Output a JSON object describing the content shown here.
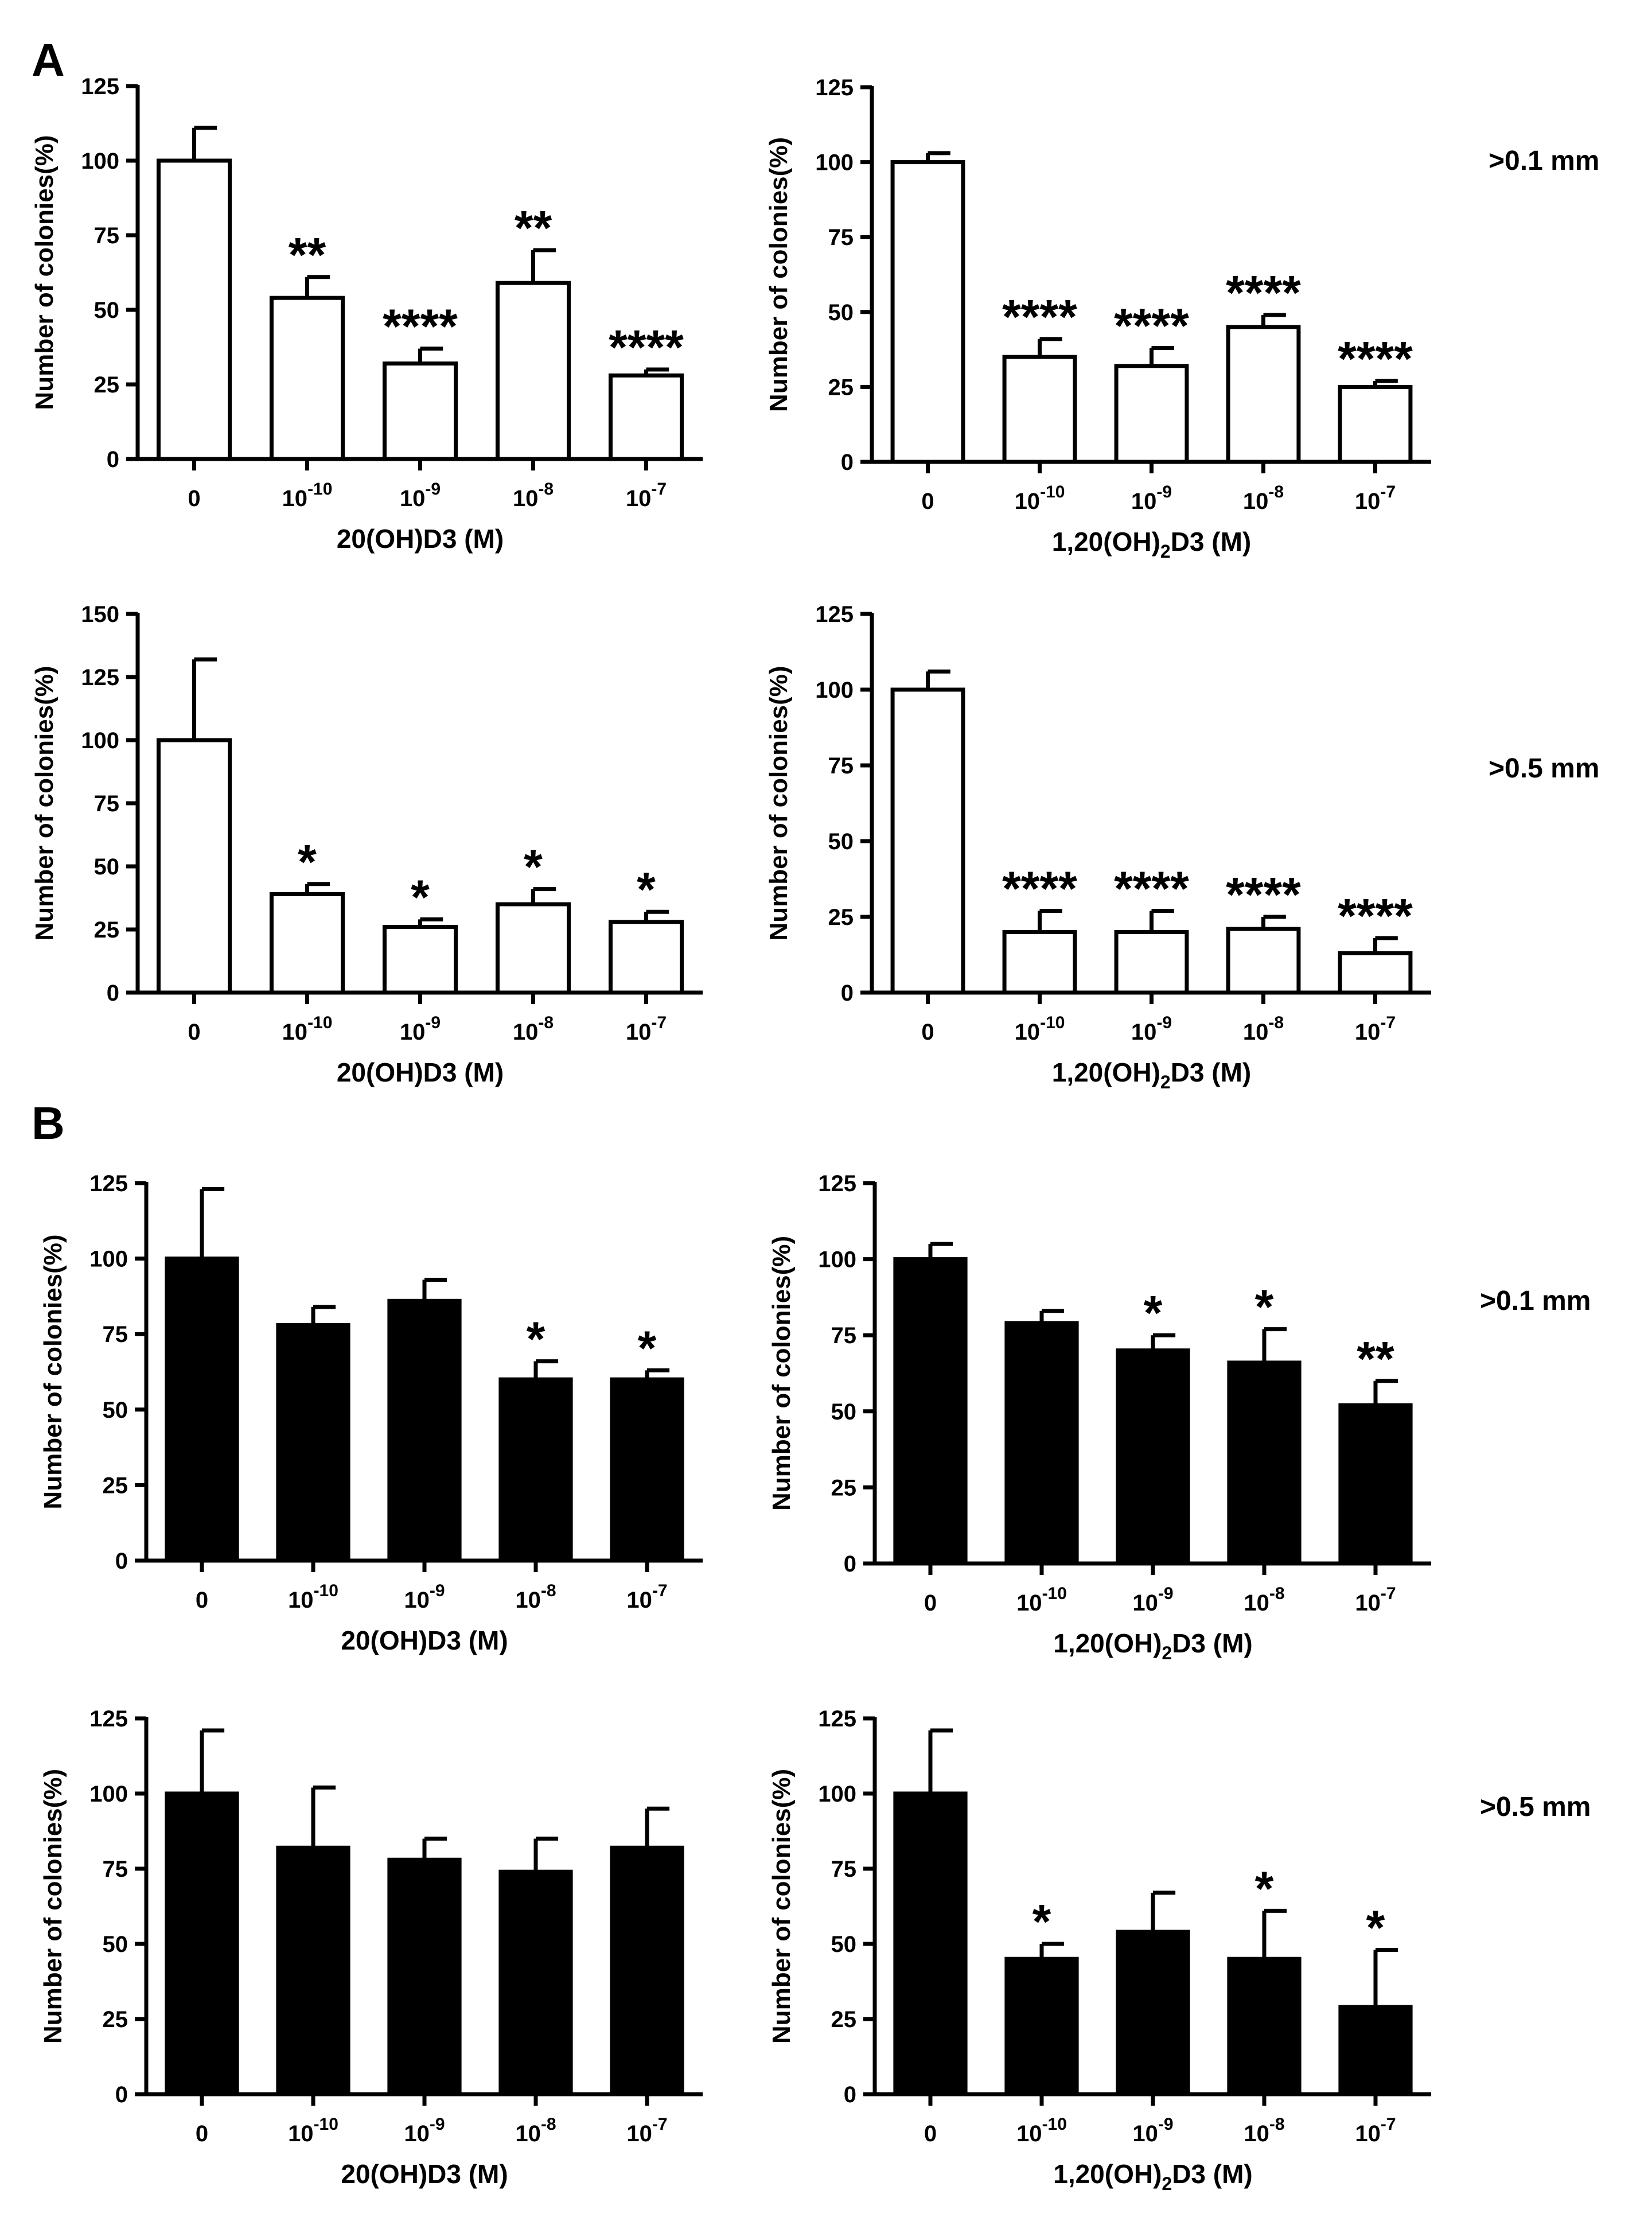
{
  "panel_labels": [
    "A",
    "B"
  ],
  "chart_data": [
    {
      "id": "A-tl",
      "type": "bar",
      "panel": "A",
      "fill": "#ffffff",
      "title": "",
      "ylabel": "Number of colonies(%)",
      "xlabel": "20(OH)D3 (M)",
      "categories": [
        {
          "base": "0",
          "exp": ""
        },
        {
          "base": "10",
          "exp": "-10"
        },
        {
          "base": "10",
          "exp": "-9"
        },
        {
          "base": "10",
          "exp": "-8"
        },
        {
          "base": "10",
          "exp": "-7"
        }
      ],
      "values": [
        100,
        54,
        32,
        59,
        28
      ],
      "errors": [
        11,
        7,
        5,
        11,
        2
      ],
      "significance": [
        "",
        "**",
        "****",
        "**",
        "****"
      ],
      "ylim": [
        0,
        125
      ],
      "yticks": [
        0,
        25,
        50,
        75,
        100,
        125
      ]
    },
    {
      "id": "A-tr",
      "type": "bar",
      "panel": "A",
      "fill": "#ffffff",
      "title": "",
      "ylabel": "Number of colonies(%)",
      "xlabel": "1,20(OH)2D3 (M)",
      "categories": [
        {
          "base": "0",
          "exp": ""
        },
        {
          "base": "10",
          "exp": "-10"
        },
        {
          "base": "10",
          "exp": "-9"
        },
        {
          "base": "10",
          "exp": "-8"
        },
        {
          "base": "10",
          "exp": "-7"
        }
      ],
      "values": [
        100,
        35,
        32,
        45,
        25
      ],
      "errors": [
        3,
        6,
        6,
        4,
        2
      ],
      "significance": [
        "",
        "****",
        "****",
        "****",
        "****"
      ],
      "ylim": [
        0,
        125
      ],
      "yticks": [
        0,
        25,
        50,
        75,
        100,
        125
      ]
    },
    {
      "id": "A-bl",
      "type": "bar",
      "panel": "A",
      "fill": "#ffffff",
      "title": "",
      "ylabel": "Number of colonies(%)",
      "xlabel": "20(OH)D3 (M)",
      "categories": [
        {
          "base": "0",
          "exp": ""
        },
        {
          "base": "10",
          "exp": "-10"
        },
        {
          "base": "10",
          "exp": "-9"
        },
        {
          "base": "10",
          "exp": "-8"
        },
        {
          "base": "10",
          "exp": "-7"
        }
      ],
      "values": [
        100,
        39,
        26,
        35,
        28
      ],
      "errors": [
        32,
        4,
        3,
        6,
        4
      ],
      "significance": [
        "",
        "*",
        "*",
        "*",
        "*"
      ],
      "ylim": [
        0,
        150
      ],
      "yticks": [
        0,
        25,
        50,
        75,
        100,
        125,
        150
      ]
    },
    {
      "id": "A-br",
      "type": "bar",
      "panel": "A",
      "fill": "#ffffff",
      "title": "",
      "ylabel": "Number of colonies(%)",
      "xlabel": "1,20(OH)2D3 (M)",
      "categories": [
        {
          "base": "0",
          "exp": ""
        },
        {
          "base": "10",
          "exp": "-10"
        },
        {
          "base": "10",
          "exp": "-9"
        },
        {
          "base": "10",
          "exp": "-8"
        },
        {
          "base": "10",
          "exp": "-7"
        }
      ],
      "values": [
        100,
        20,
        20,
        21,
        13
      ],
      "errors": [
        6,
        7,
        7,
        4,
        5
      ],
      "significance": [
        "",
        "****",
        "****",
        "****",
        "****"
      ],
      "ylim": [
        0,
        125
      ],
      "yticks": [
        0,
        25,
        50,
        75,
        100,
        125
      ]
    },
    {
      "id": "B-tl",
      "type": "bar",
      "panel": "B",
      "fill": "#000000",
      "title": "",
      "ylabel": "Number of colonies(%)",
      "xlabel": "20(OH)D3 (M)",
      "categories": [
        {
          "base": "0",
          "exp": ""
        },
        {
          "base": "10",
          "exp": "-10"
        },
        {
          "base": "10",
          "exp": "-9"
        },
        {
          "base": "10",
          "exp": "-8"
        },
        {
          "base": "10",
          "exp": "-7"
        }
      ],
      "values": [
        100,
        78,
        86,
        60,
        60
      ],
      "errors": [
        23,
        6,
        7,
        6,
        3
      ],
      "significance": [
        "",
        "",
        "",
        "*",
        "*"
      ],
      "ylim": [
        0,
        125
      ],
      "yticks": [
        0,
        25,
        50,
        75,
        100,
        125
      ]
    },
    {
      "id": "B-tr",
      "type": "bar",
      "panel": "B",
      "fill": "#000000",
      "title": "",
      "ylabel": "Number of colonies(%)",
      "xlabel": "1,20(OH)2D3 (M)",
      "categories": [
        {
          "base": "0",
          "exp": ""
        },
        {
          "base": "10",
          "exp": "-10"
        },
        {
          "base": "10",
          "exp": "-9"
        },
        {
          "base": "10",
          "exp": "-8"
        },
        {
          "base": "10",
          "exp": "-7"
        }
      ],
      "values": [
        100,
        79,
        70,
        66,
        52
      ],
      "errors": [
        5,
        4,
        5,
        11,
        8
      ],
      "significance": [
        "",
        "",
        "*",
        "*",
        "**"
      ],
      "ylim": [
        0,
        125
      ],
      "yticks": [
        0,
        25,
        50,
        75,
        100,
        125
      ]
    },
    {
      "id": "B-bl",
      "type": "bar",
      "panel": "B",
      "fill": "#000000",
      "title": "",
      "ylabel": "Number of colonies(%)",
      "xlabel": "20(OH)D3 (M)",
      "categories": [
        {
          "base": "0",
          "exp": ""
        },
        {
          "base": "10",
          "exp": "-10"
        },
        {
          "base": "10",
          "exp": "-9"
        },
        {
          "base": "10",
          "exp": "-8"
        },
        {
          "base": "10",
          "exp": "-7"
        }
      ],
      "values": [
        100,
        82,
        78,
        74,
        82
      ],
      "errors": [
        21,
        20,
        7,
        11,
        13
      ],
      "significance": [
        "",
        "",
        "",
        "",
        ""
      ],
      "ylim": [
        0,
        125
      ],
      "yticks": [
        0,
        25,
        50,
        75,
        100,
        125
      ]
    },
    {
      "id": "B-br",
      "type": "bar",
      "panel": "B",
      "fill": "#000000",
      "title": "",
      "ylabel": "Number of colonies(%)",
      "xlabel": "1,20(OH)2D3 (M)",
      "categories": [
        {
          "base": "0",
          "exp": ""
        },
        {
          "base": "10",
          "exp": "-10"
        },
        {
          "base": "10",
          "exp": "-9"
        },
        {
          "base": "10",
          "exp": "-8"
        },
        {
          "base": "10",
          "exp": "-7"
        }
      ],
      "values": [
        100,
        45,
        54,
        45,
        29
      ],
      "errors": [
        21,
        5,
        13,
        16,
        19
      ],
      "significance": [
        "",
        "*",
        "",
        "*",
        "*"
      ],
      "ylim": [
        0,
        125
      ],
      "yticks": [
        0,
        25,
        50,
        75,
        100,
        125
      ]
    }
  ],
  "size_labels": [
    ">0.1 mm",
    ">0.5 mm",
    ">0.1 mm",
    ">0.5 mm"
  ]
}
